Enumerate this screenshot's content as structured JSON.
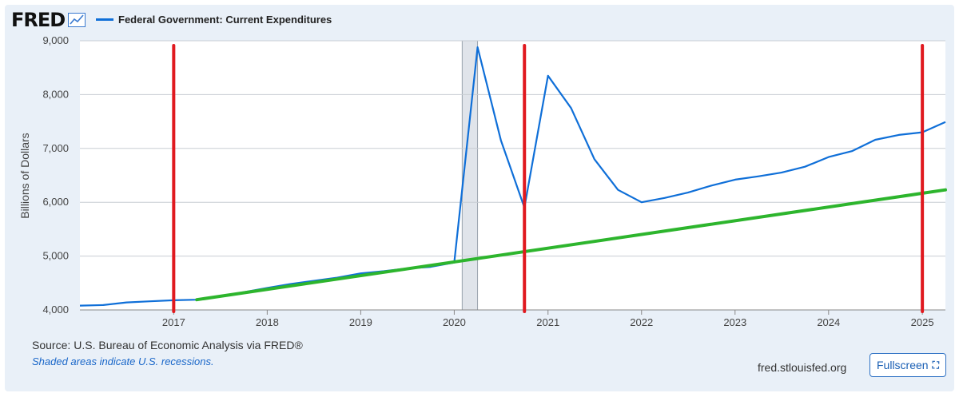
{
  "brand": {
    "logo": "FRED"
  },
  "source": {
    "label": "Source:",
    "text": "U.S. Bureau of Economic Analysis via FRED®"
  },
  "note": "Shaded areas indicate U.S. recessions.",
  "site": "fred.stlouisfed.org",
  "fullscreen_label": "Fullscreen",
  "colors": {
    "series": "#0f6fd8",
    "trend": "#2db52d",
    "markers": "#e0191f",
    "recession": "#e0e4ea"
  },
  "chart_data": {
    "type": "line",
    "title": "Federal Government: Current Expenditures",
    "ylabel": "Billions of Dollars",
    "ylim": [
      4000,
      9000
    ],
    "yticks": [
      "4,000",
      "5,000",
      "6,000",
      "7,000",
      "8,000",
      "9,000"
    ],
    "ytick_values": [
      4000,
      5000,
      6000,
      7000,
      8000,
      9000
    ],
    "xlim": [
      "2016-01-01",
      "2025-04-01"
    ],
    "xticks": [
      "2017",
      "2018",
      "2019",
      "2020",
      "2021",
      "2022",
      "2023",
      "2024",
      "2025"
    ],
    "grid": "horizontal",
    "series": [
      {
        "name": "Federal Government: Current Expenditures",
        "x": [
          "2016-01-01",
          "2016-04-01",
          "2016-07-01",
          "2016-10-01",
          "2017-01-01",
          "2017-04-01",
          "2017-07-01",
          "2017-10-01",
          "2018-01-01",
          "2018-04-01",
          "2018-07-01",
          "2018-10-01",
          "2019-01-01",
          "2019-04-01",
          "2019-07-01",
          "2019-10-01",
          "2020-01-01",
          "2020-04-01",
          "2020-07-01",
          "2020-10-01",
          "2021-01-01",
          "2021-04-01",
          "2021-07-01",
          "2021-10-01",
          "2022-01-01",
          "2022-04-01",
          "2022-07-01",
          "2022-10-01",
          "2023-01-01",
          "2023-04-01",
          "2023-07-01",
          "2023-10-01",
          "2024-01-01",
          "2024-04-01",
          "2024-07-01",
          "2024-10-01",
          "2025-01-01",
          "2025-04-01"
        ],
        "values": [
          4080,
          4090,
          4140,
          4160,
          4180,
          4190,
          4250,
          4330,
          4410,
          4480,
          4540,
          4600,
          4680,
          4720,
          4770,
          4800,
          4880,
          8880,
          7150,
          5900,
          8350,
          7750,
          6800,
          6230,
          6000,
          6080,
          6180,
          6310,
          6420,
          6480,
          6550,
          6660,
          6840,
          6950,
          7160,
          7250,
          7300,
          7490
        ]
      },
      {
        "name": "",
        "x": [
          "2017-04-01",
          "2025-04-01"
        ],
        "values": [
          4190,
          6230
        ],
        "style": "trend"
      }
    ],
    "vertical_markers": [
      "2017-01-01",
      "2020-10-01",
      "2025-01-01"
    ],
    "recessions": [
      {
        "start": "2020-02-01",
        "end": "2020-04-01"
      }
    ]
  }
}
